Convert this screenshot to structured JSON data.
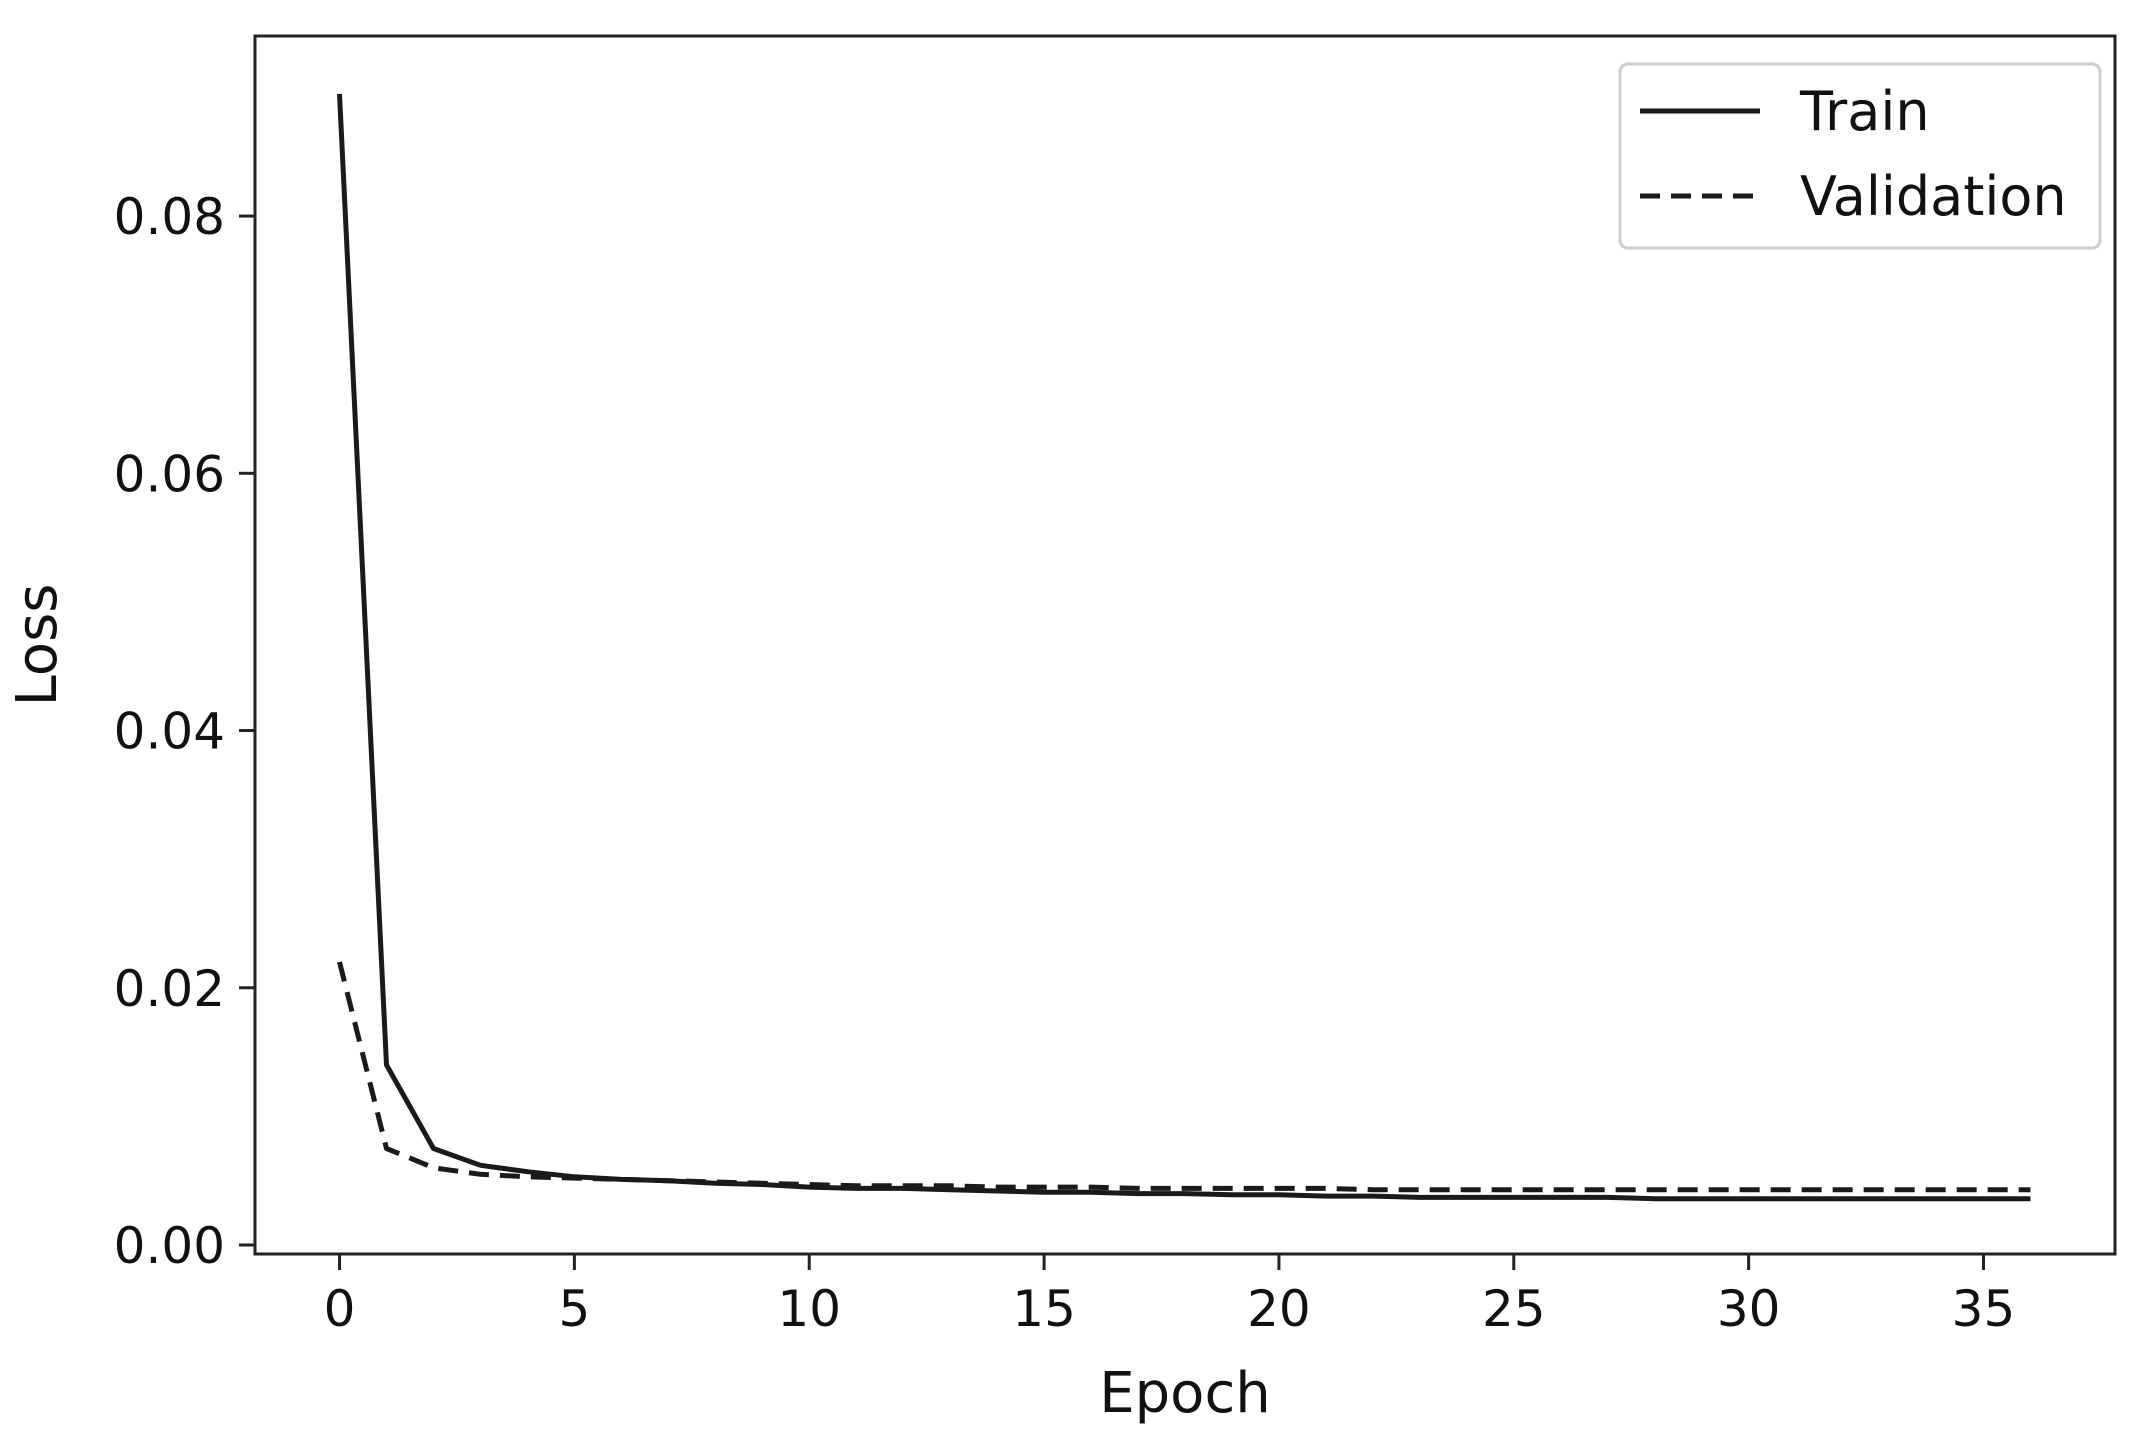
{
  "chart_data": {
    "type": "line",
    "title": "",
    "xlabel": "Epoch",
    "ylabel": "Loss",
    "xlim": [
      -1.8,
      37.8
    ],
    "ylim": [
      -0.0007,
      0.094
    ],
    "xticks": [
      0,
      5,
      10,
      15,
      20,
      25,
      30,
      35
    ],
    "xtick_labels": [
      "0",
      "5",
      "10",
      "15",
      "20",
      "25",
      "30",
      "35"
    ],
    "yticks": [
      0.0,
      0.02,
      0.04,
      0.06,
      0.08
    ],
    "ytick_labels": [
      "0.00",
      "0.02",
      "0.04",
      "0.06",
      "0.08"
    ],
    "grid": false,
    "legend": {
      "position": "top-right",
      "entries": [
        "Train",
        "Validation"
      ]
    },
    "series": [
      {
        "name": "Train",
        "style": "solid",
        "color": "#1a1a1a",
        "x": [
          0,
          1,
          2,
          3,
          4,
          5,
          6,
          7,
          8,
          9,
          10,
          11,
          12,
          13,
          14,
          15,
          16,
          17,
          18,
          19,
          20,
          21,
          22,
          23,
          24,
          25,
          26,
          27,
          28,
          29,
          30,
          31,
          32,
          33,
          34,
          35,
          36
        ],
        "values": [
          0.0895,
          0.014,
          0.0075,
          0.0062,
          0.0057,
          0.0053,
          0.0051,
          0.005,
          0.0048,
          0.0047,
          0.0045,
          0.0044,
          0.0044,
          0.0043,
          0.0042,
          0.0041,
          0.0041,
          0.004,
          0.004,
          0.0039,
          0.0039,
          0.0038,
          0.0038,
          0.0037,
          0.0037,
          0.0037,
          0.0037,
          0.0037,
          0.0036,
          0.0036,
          0.0036,
          0.0036,
          0.0036,
          0.0036,
          0.0036,
          0.0036,
          0.0036
        ]
      },
      {
        "name": "Validation",
        "style": "dashed",
        "color": "#1a1a1a",
        "x": [
          0,
          1,
          2,
          3,
          4,
          5,
          6,
          7,
          8,
          9,
          10,
          11,
          12,
          13,
          14,
          15,
          16,
          17,
          18,
          19,
          20,
          21,
          22,
          23,
          24,
          25,
          26,
          27,
          28,
          29,
          30,
          31,
          32,
          33,
          34,
          35,
          36
        ],
        "values": [
          0.022,
          0.0075,
          0.006,
          0.0055,
          0.0053,
          0.0052,
          0.0051,
          0.005,
          0.0049,
          0.0048,
          0.0047,
          0.0046,
          0.0046,
          0.0046,
          0.0045,
          0.0045,
          0.0045,
          0.0044,
          0.0044,
          0.0044,
          0.0044,
          0.0044,
          0.0043,
          0.0043,
          0.0043,
          0.0043,
          0.0043,
          0.0043,
          0.0043,
          0.0043,
          0.0043,
          0.0043,
          0.0043,
          0.0043,
          0.0043,
          0.0043,
          0.0043
        ]
      }
    ]
  }
}
